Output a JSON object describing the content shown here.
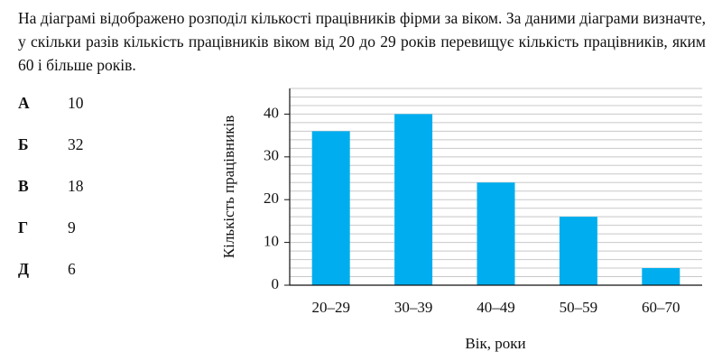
{
  "question": "На діаграмі відображено розподіл кількості працівників фірми за віком. За даними діаграми визначте, у скільки разів кількість працівників віком від 20 до 29 років перевищує кількість працівників, яким 60 і більше років.",
  "options": [
    {
      "letter": "А",
      "text": "10"
    },
    {
      "letter": "Б",
      "text": "32"
    },
    {
      "letter": "В",
      "text": "18"
    },
    {
      "letter": "Г",
      "text": "9"
    },
    {
      "letter": "Д",
      "text": "6"
    }
  ],
  "chart_data": {
    "type": "bar",
    "x_label": "Вік, роки",
    "y_label": "Кількість працівників",
    "categories": [
      "20–29",
      "30–39",
      "40–49",
      "50–59",
      "60–70"
    ],
    "values": [
      36,
      40,
      24,
      16,
      4
    ],
    "color": "#00aeef",
    "ylim": [
      0,
      46
    ],
    "yticks": [
      0,
      10,
      20,
      30,
      40
    ],
    "ygrid": [
      2,
      4,
      6,
      8,
      10,
      12,
      14,
      16,
      18,
      20,
      22,
      24,
      26,
      28,
      30,
      32,
      34,
      36,
      38,
      40,
      42,
      44,
      46
    ],
    "grid": true
  }
}
